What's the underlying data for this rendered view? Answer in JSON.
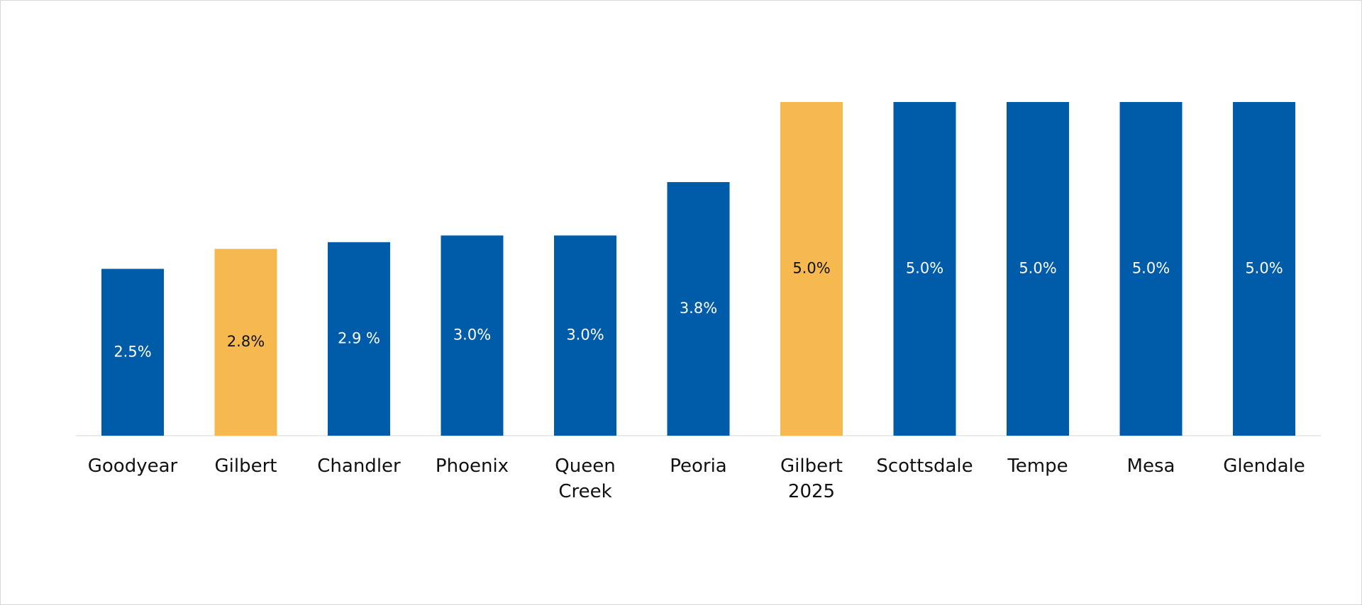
{
  "chart_data": {
    "type": "bar",
    "categories": [
      "Goodyear",
      "Gilbert",
      "Chandler",
      "Phoenix",
      "Queen\nCreek",
      "Peoria",
      "Gilbert\n2025",
      "Scottsdale",
      "Tempe",
      "Mesa",
      "Glendale"
    ],
    "values": [
      2.5,
      2.8,
      2.9,
      3.0,
      3.0,
      3.8,
      5.0,
      5.0,
      5.0,
      5.0,
      5.0
    ],
    "value_labels": [
      "2.5%",
      "2.8%",
      "2.9 %",
      "3.0%",
      "3.0%",
      "3.8%",
      "5.0%",
      "5.0%",
      "5.0%",
      "5.0%",
      "5.0%"
    ],
    "colors": [
      "#005ca9",
      "#f5b94f",
      "#005ca9",
      "#005ca9",
      "#005ca9",
      "#005ca9",
      "#f5b94f",
      "#005ca9",
      "#005ca9",
      "#005ca9",
      "#005ca9"
    ]
  }
}
